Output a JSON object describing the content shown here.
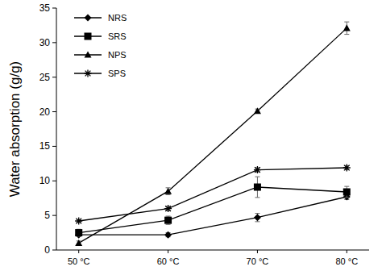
{
  "chart_data": {
    "type": "line",
    "y_label": "Water absorption (g/g)",
    "categories": [
      "50 °C",
      "60 °C",
      "70 °C",
      "80 °C"
    ],
    "series": [
      {
        "name": "NRS",
        "color": "#000000",
        "marker": "diamond",
        "line_style": "solid",
        "values": [
          2.2,
          2.2,
          4.7,
          7.7
        ],
        "errors": [
          0.2,
          0.3,
          0.6,
          0.4
        ]
      },
      {
        "name": "SRS",
        "color": "#000000",
        "marker": "square",
        "line_style": "solid",
        "values": [
          2.5,
          4.3,
          9.1,
          8.4
        ],
        "errors": [
          0.5,
          0.6,
          1.5,
          0.8
        ]
      },
      {
        "name": "NPS",
        "color": "#000000",
        "marker": "triangle",
        "line_style": "solid",
        "values": [
          1.0,
          8.5,
          20.1,
          32.1
        ],
        "errors": [
          0.3,
          0.5,
          0.3,
          0.9
        ]
      },
      {
        "name": "SPS",
        "color": "#000000",
        "marker": "asterisk",
        "line_style": "solid",
        "values": [
          4.2,
          6.0,
          11.6,
          11.9
        ],
        "errors": [
          0.2,
          0.3,
          0.3,
          0.3
        ]
      }
    ],
    "ylim": [
      0,
      35
    ],
    "yticks": [
      0,
      5,
      10,
      15,
      20,
      25,
      30,
      35
    ],
    "grid": false,
    "legend": "upper left"
  }
}
